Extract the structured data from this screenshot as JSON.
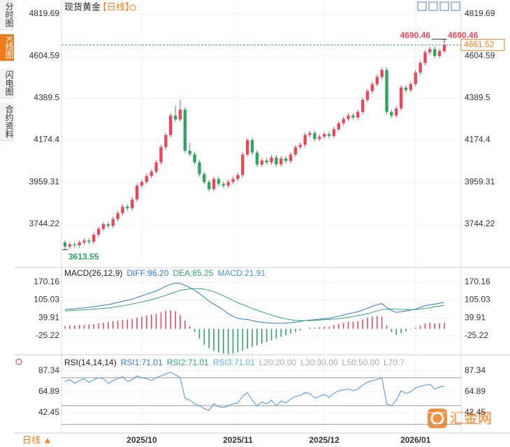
{
  "ui": {
    "tabs": [
      "分时图",
      "K线图",
      "闪电图",
      "合约资料"
    ],
    "active_tab": 1,
    "bottom_period": "日线 ▲",
    "watermark": "汇金网"
  },
  "chart_data": [
    {
      "type": "candlestick",
      "title": "现货黄金",
      "period": "【日线】",
      "categories": [
        null,
        null,
        null,
        null,
        null,
        null,
        null,
        null,
        null,
        null,
        null,
        null,
        null,
        null,
        null,
        null,
        "2025/10",
        null,
        null,
        null,
        null,
        null,
        null,
        null,
        null,
        null,
        null,
        null,
        null,
        null,
        null,
        null,
        null,
        null,
        null,
        null,
        "2025/11",
        null,
        null,
        null,
        null,
        null,
        null,
        null,
        null,
        null,
        null,
        null,
        null,
        null,
        null,
        null,
        null,
        null,
        "2025/12",
        null,
        null,
        null,
        null,
        null,
        null,
        null,
        null,
        null,
        null,
        null,
        null,
        null,
        null,
        null,
        null,
        null,
        null,
        "2026/01",
        null,
        null,
        null,
        null,
        null,
        null
      ],
      "ohlc": [
        [
          3650,
          3662,
          3613.55,
          3629
        ],
        [
          3629,
          3652,
          3617,
          3640
        ],
        [
          3640,
          3652,
          3624,
          3636
        ],
        [
          3636,
          3662,
          3624,
          3650
        ],
        [
          3650,
          3672,
          3638,
          3660
        ],
        [
          3660,
          3672,
          3642,
          3654
        ],
        [
          3654,
          3702,
          3642,
          3690
        ],
        [
          3690,
          3732,
          3678,
          3720
        ],
        [
          3720,
          3756,
          3708,
          3744
        ],
        [
          3744,
          3756,
          3723,
          3735
        ],
        [
          3735,
          3782,
          3723,
          3770
        ],
        [
          3770,
          3812,
          3758,
          3800
        ],
        [
          3800,
          3846,
          3788,
          3834
        ],
        [
          3834,
          3846,
          3813,
          3825
        ],
        [
          3825,
          3882,
          3813,
          3870
        ],
        [
          3870,
          3953,
          3858,
          3941
        ],
        [
          3941,
          3972,
          3929,
          3960
        ],
        [
          3960,
          4002,
          3948,
          3990
        ],
        [
          3990,
          4025,
          3978,
          4013
        ],
        [
          4013,
          4072,
          4001,
          4060
        ],
        [
          4060,
          4150,
          4048,
          4138
        ],
        [
          4138,
          4212,
          4126,
          4200
        ],
        [
          4200,
          4312,
          4188,
          4300
        ],
        [
          4300,
          4350,
          4268,
          4280
        ],
        [
          4280,
          4381.29,
          4268,
          4330
        ],
        [
          4330,
          4342,
          4108,
          4120
        ],
        [
          4120,
          4160,
          4090,
          4102
        ],
        [
          4102,
          4114,
          4048,
          4060
        ],
        [
          4060,
          4072,
          3988,
          4000
        ],
        [
          4000,
          4012,
          3947,
          3959
        ],
        [
          3959,
          3971,
          3911,
          3923
        ],
        [
          3923,
          3987,
          3911,
          3975
        ],
        [
          3975,
          3987,
          3938,
          3950
        ],
        [
          3950,
          3962,
          3929,
          3941
        ],
        [
          3941,
          3972,
          3929,
          3960
        ],
        [
          3960,
          3987,
          3948,
          3975
        ],
        [
          3975,
          4007,
          3963,
          3995
        ],
        [
          3995,
          4112,
          3983,
          4100
        ],
        [
          4100,
          4186,
          4088,
          4174
        ],
        [
          4174,
          4186,
          4098,
          4110
        ],
        [
          4110,
          4122,
          4037,
          4049
        ],
        [
          4049,
          4082,
          4037,
          4070
        ],
        [
          4070,
          4082,
          4048,
          4060
        ],
        [
          4060,
          4097,
          4048,
          4085
        ],
        [
          4085,
          4097,
          4038,
          4050
        ],
        [
          4050,
          4092,
          4038,
          4080
        ],
        [
          4080,
          4092,
          4055,
          4067
        ],
        [
          4067,
          4112,
          4055,
          4100
        ],
        [
          4100,
          4150,
          4088,
          4138
        ],
        [
          4138,
          4162,
          4126,
          4150
        ],
        [
          4150,
          4212,
          4138,
          4200
        ],
        [
          4200,
          4222,
          4188,
          4210
        ],
        [
          4210,
          4222,
          4168,
          4180
        ],
        [
          4180,
          4204,
          4168,
          4192
        ],
        [
          4192,
          4217,
          4180,
          4205
        ],
        [
          4205,
          4217,
          4183,
          4195
        ],
        [
          4195,
          4242,
          4183,
          4230
        ],
        [
          4230,
          4272,
          4218,
          4260
        ],
        [
          4260,
          4294,
          4248,
          4282
        ],
        [
          4282,
          4312,
          4270,
          4300
        ],
        [
          4300,
          4312,
          4278,
          4290
        ],
        [
          4290,
          4330,
          4278,
          4318
        ],
        [
          4318,
          4392,
          4306,
          4380
        ],
        [
          4380,
          4437,
          4368,
          4425
        ],
        [
          4425,
          4472,
          4413,
          4460
        ],
        [
          4460,
          4509,
          4448,
          4497
        ],
        [
          4497,
          4545,
          4485,
          4533
        ],
        [
          4533,
          4545,
          4306,
          4318
        ],
        [
          4318,
          4330,
          4288,
          4300
        ],
        [
          4300,
          4348,
          4288,
          4336
        ],
        [
          4336,
          4455,
          4324,
          4443
        ],
        [
          4443,
          4455,
          4418,
          4430
        ],
        [
          4430,
          4473,
          4418,
          4461
        ],
        [
          4461,
          4532,
          4449,
          4520
        ],
        [
          4520,
          4581,
          4508,
          4569
        ],
        [
          4569,
          4635,
          4557,
          4623
        ],
        [
          4623,
          4652,
          4611,
          4640
        ],
        [
          4640,
          4652,
          4593,
          4605
        ],
        [
          4605,
          4642,
          4593,
          4630
        ],
        [
          4630,
          4690.46,
          4618,
          4661.52
        ]
      ],
      "ylim": [
        3532.7,
        4855.5
      ],
      "yticks": [
        4819.69,
        4604.59,
        4389.5,
        4174.4,
        3959.31,
        3744.22
      ],
      "up_color": "#e8485a",
      "down_color": "#2fa35f"
    },
    {
      "type": "macd",
      "label": "MACD(26,12,9)",
      "histogram_label": "MACD:21.91",
      "series": [
        {
          "name": "DIFF:96.20",
          "color": "#2f78d0",
          "values": [
            70,
            72,
            73,
            75,
            76,
            78,
            80,
            83,
            86,
            88,
            92,
            96,
            100,
            104,
            108,
            114,
            120,
            126,
            132,
            138,
            146,
            155,
            162,
            166,
            165,
            158,
            150,
            140,
            128,
            115,
            100,
            90,
            80,
            68,
            55,
            45,
            38,
            35,
            34,
            30,
            26,
            24,
            22,
            21,
            20,
            20,
            21,
            22,
            24,
            27,
            30,
            32,
            33,
            35,
            37,
            38,
            42,
            46,
            50,
            55,
            58,
            62,
            68,
            75,
            82,
            88,
            92,
            78,
            66,
            60,
            62,
            65,
            68,
            72,
            78,
            84,
            88,
            90,
            93,
            96.2
          ]
        },
        {
          "name": "DEA:85.25",
          "color": "#2fa37a",
          "values": [
            65,
            66,
            67,
            68,
            69,
            70,
            72,
            73,
            75,
            76,
            78,
            81,
            84,
            87,
            90,
            94,
            98,
            102,
            106,
            111,
            116,
            122,
            128,
            134,
            140,
            143,
            145,
            146,
            146,
            144,
            140,
            135,
            128,
            120,
            112,
            103,
            95,
            88,
            81,
            74,
            68,
            62,
            56,
            50,
            45,
            40,
            36,
            33,
            31,
            30,
            30,
            30,
            31,
            32,
            33,
            34,
            35,
            37,
            39,
            42,
            45,
            48,
            51,
            55,
            60,
            65,
            70,
            72,
            72,
            71,
            70,
            70,
            69,
            70,
            72,
            74,
            77,
            80,
            83,
            85.25
          ]
        }
      ],
      "histogram": [
        10,
        12,
        12,
        14,
        14,
        16,
        16,
        20,
        22,
        24,
        28,
        30,
        32,
        34,
        36,
        40,
        44,
        48,
        52,
        54,
        60,
        66,
        68,
        64,
        50,
        30,
        10,
        -12,
        -36,
        -58,
        -70,
        -80,
        -86,
        -90,
        -92,
        -90,
        -86,
        -80,
        -72,
        -66,
        -60,
        -54,
        -48,
        -42,
        -36,
        -30,
        -24,
        -18,
        -12,
        -6,
        0,
        4,
        4,
        6,
        8,
        8,
        14,
        18,
        22,
        26,
        26,
        28,
        34,
        40,
        44,
        46,
        44,
        12,
        -12,
        -22,
        -16,
        -10,
        -2,
        4,
        12,
        20,
        22,
        20,
        20,
        21.91
      ],
      "ylim": [
        -94.6,
        185
      ],
      "yticks": [
        170.16,
        105.03,
        39.91,
        -25.22
      ]
    },
    {
      "type": "rsi",
      "legend": [
        "RSI(14,14,14)",
        "RSI1:71.01",
        "RSI2:71.01",
        "RSI3:71.01",
        "L20:20.00",
        "L30:30.00",
        "L50:50.00",
        "L70:7"
      ],
      "color": "#4a90d9",
      "values": [
        76,
        78,
        74,
        77,
        79,
        75,
        78,
        80,
        79,
        74,
        77,
        79,
        81,
        76,
        78,
        82,
        80,
        79,
        77,
        80,
        82,
        84,
        86,
        83,
        80,
        58,
        56,
        52,
        50,
        47,
        45,
        52,
        49,
        48,
        50,
        52,
        53,
        60,
        64,
        56,
        50,
        54,
        52,
        56,
        50,
        55,
        53,
        57,
        60,
        61,
        64,
        63,
        58,
        60,
        62,
        59,
        63,
        66,
        67,
        68,
        66,
        68,
        72,
        75,
        77,
        78,
        80,
        52,
        50,
        56,
        66,
        63,
        65,
        69,
        71,
        72,
        73,
        68,
        70,
        71.01
      ],
      "levels": [
        30,
        50,
        80
      ],
      "ylim": [
        26.7,
        95.6
      ],
      "yticks": [
        87.34,
        64.89,
        42.45
      ]
    }
  ]
}
